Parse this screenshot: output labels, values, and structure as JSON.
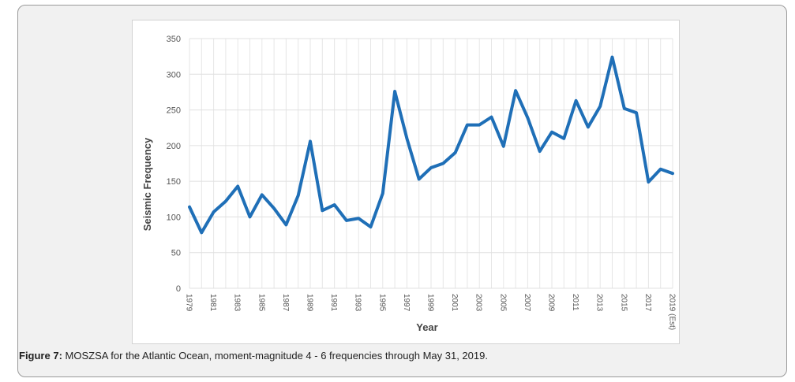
{
  "chart_data": {
    "type": "line",
    "title": "",
    "xlabel": "Year",
    "ylabel": "Seismic Frequency",
    "ylim": [
      0,
      350
    ],
    "yticks": [
      0,
      50,
      100,
      150,
      200,
      250,
      300,
      350
    ],
    "grid": true,
    "categories": [
      "1979",
      "1980",
      "1981",
      "1982",
      "1983",
      "1984",
      "1985",
      "1986",
      "1987",
      "1988",
      "1989",
      "1990",
      "1991",
      "1992",
      "1993",
      "1994",
      "1995",
      "1996",
      "1997",
      "1998",
      "1999",
      "2000",
      "2001",
      "2002",
      "2003",
      "2004",
      "2005",
      "2006",
      "2007",
      "2008",
      "2009",
      "2010",
      "2011",
      "2012",
      "2013",
      "2014",
      "2015",
      "2016",
      "2017",
      "2018",
      "2019 (Est)"
    ],
    "tick_labels": [
      "1979",
      "1981",
      "1983",
      "1985",
      "1987",
      "1989",
      "1991",
      "1993",
      "1995",
      "1997",
      "1999",
      "2001",
      "2003",
      "2005",
      "2007",
      "2009",
      "2011",
      "2013",
      "2015",
      "2017",
      "2019 (Est)"
    ],
    "series": [
      {
        "name": "Seismic Frequency",
        "color": "#1f6fb7",
        "values": [
          114,
          78,
          107,
          122,
          143,
          100,
          131,
          112,
          89,
          130,
          206,
          109,
          117,
          95,
          98,
          86,
          133,
          276,
          210,
          153,
          169,
          175,
          190,
          229,
          229,
          240,
          199,
          277,
          239,
          192,
          219,
          210,
          263,
          226,
          255,
          324,
          252,
          246,
          149,
          167,
          161
        ]
      }
    ]
  },
  "caption": {
    "label": "Figure 7:",
    "text": " MOSZSA for the Atlantic Ocean, moment-magnitude 4 - 6 frequencies through May 31, 2019."
  }
}
